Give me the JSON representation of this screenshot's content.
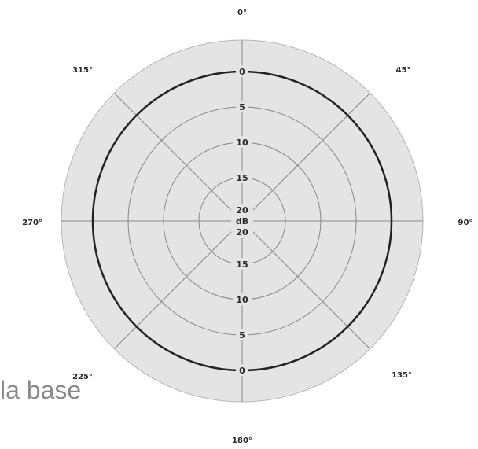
{
  "diagram": {
    "angle_labels": [
      {
        "text": "0°",
        "angle": 0
      },
      {
        "text": "45°",
        "angle": 45
      },
      {
        "text": "90°",
        "angle": 90
      },
      {
        "text": "135°",
        "angle": 135
      },
      {
        "text": "180°",
        "angle": 180
      },
      {
        "text": "225°",
        "angle": 225
      },
      {
        "text": "270°",
        "angle": 270
      },
      {
        "text": "315°",
        "angle": 315
      }
    ],
    "rings_db": [
      0,
      5,
      10,
      15,
      20
    ],
    "ring_labels_top": [
      "0",
      "5",
      "10",
      "15",
      "20"
    ],
    "ring_labels_bottom": [
      "0",
      "5",
      "10",
      "15",
      "20"
    ],
    "center_unit": "dB",
    "pattern": "omnidirectional",
    "colors": {
      "outer_fill": "#e4e4e4",
      "grid_line": "#888888",
      "response_line": "#222222",
      "text": "#2a2a2a"
    }
  },
  "caption_overlay": "la base"
}
